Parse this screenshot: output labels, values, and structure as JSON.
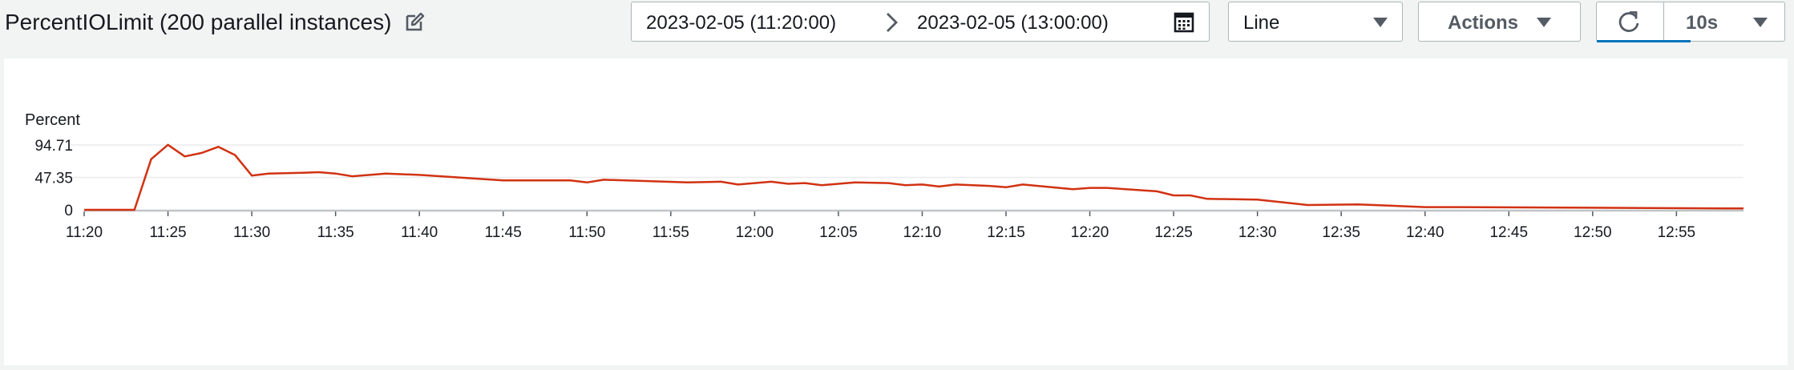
{
  "widget": {
    "title": "PercentIOLimit (200 parallel instances)",
    "edit_icon": "edit-icon"
  },
  "time_range": {
    "start": "2023-02-05 (11:20:00)",
    "end": "2023-02-05 (13:00:00)",
    "separator_icon": "chevron-right-icon",
    "calendar_icon": "calendar-icon"
  },
  "chart_type_select": {
    "value": "Line",
    "icon": "caret-down-icon"
  },
  "actions_button": {
    "label": "Actions",
    "icon": "caret-down-icon"
  },
  "refresh": {
    "icon": "refresh-icon",
    "interval": "10s"
  },
  "colors": {
    "series": "#d13212",
    "accent": "#0073bb",
    "grid": "#e9ebed"
  },
  "chart_data": {
    "type": "line",
    "ylabel": "Percent",
    "yticks": [
      "0",
      "47.35",
      "94.71"
    ],
    "ylim": [
      0,
      94.71
    ],
    "xticks": [
      "11:20",
      "11:25",
      "11:30",
      "11:35",
      "11:40",
      "11:45",
      "11:50",
      "11:55",
      "12:00",
      "12:05",
      "12:10",
      "12:15",
      "12:20",
      "12:25",
      "12:30",
      "12:35",
      "12:40",
      "12:45",
      "12:50",
      "12:55"
    ],
    "x_unit": "minutes after 11:20",
    "grid": true,
    "series": [
      {
        "color": "#d13212",
        "points": [
          [
            0,
            0
          ],
          [
            3,
            0
          ],
          [
            4,
            74
          ],
          [
            5,
            95
          ],
          [
            6,
            78
          ],
          [
            7,
            83
          ],
          [
            8,
            92
          ],
          [
            9,
            80
          ],
          [
            10,
            50
          ],
          [
            11,
            53
          ],
          [
            13,
            54
          ],
          [
            14,
            55
          ],
          [
            15,
            53
          ],
          [
            16,
            49
          ],
          [
            18,
            53
          ],
          [
            20,
            51
          ],
          [
            25,
            43
          ],
          [
            29,
            43
          ],
          [
            30,
            40
          ],
          [
            31,
            44
          ],
          [
            36,
            40
          ],
          [
            38,
            41
          ],
          [
            39,
            37
          ],
          [
            41,
            41
          ],
          [
            42,
            38
          ],
          [
            43,
            39
          ],
          [
            44,
            36
          ],
          [
            46,
            40
          ],
          [
            48,
            39
          ],
          [
            49,
            36
          ],
          [
            50,
            37
          ],
          [
            51,
            34
          ],
          [
            52,
            37
          ],
          [
            54,
            35
          ],
          [
            55,
            33
          ],
          [
            56,
            37
          ],
          [
            59,
            30
          ],
          [
            60,
            32
          ],
          [
            61,
            32
          ],
          [
            64,
            27
          ],
          [
            65,
            21
          ],
          [
            66,
            21
          ],
          [
            67,
            16
          ],
          [
            70,
            15
          ],
          [
            73,
            7
          ],
          [
            76,
            8
          ],
          [
            78,
            6
          ],
          [
            80,
            4
          ],
          [
            82,
            4
          ],
          [
            90,
            3
          ],
          [
            98,
            2
          ],
          [
            99,
            2
          ]
        ]
      }
    ]
  }
}
